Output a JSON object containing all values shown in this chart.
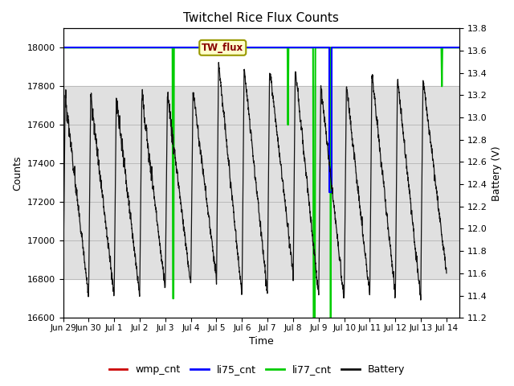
{
  "title": "Twitchel Rice Flux Counts",
  "xlabel": "Time",
  "ylabel_left": "Counts",
  "ylabel_right": "Battery (V)",
  "xlim_days": [
    0,
    15.5
  ],
  "ylim_left": [
    16600,
    18100
  ],
  "ylim_right": [
    11.2,
    13.8
  ],
  "x_tick_labels": [
    "Jun 29",
    "Jun 30",
    "Jul 1",
    "Jul 2",
    "Jul 3",
    "Jul 4",
    "Jul 5",
    "Jul 6",
    "Jul 7",
    "Jul 8",
    "Jul 9",
    "Jul 10",
    "Jul 11",
    "Jul 12",
    "Jul 13",
    "Jul 14"
  ],
  "x_tick_positions": [
    0,
    1,
    2,
    3,
    4,
    5,
    6,
    7,
    8,
    9,
    10,
    11,
    12,
    13,
    14,
    15
  ],
  "annotation_label": "TW_flux",
  "background_shade_ymin": 16800,
  "background_shade_ymax": 17800,
  "grid_color": "#aaaaaa",
  "shade_color": "#e0e0e0",
  "li77_color": "#00cc00",
  "li75_color": "#0000ff",
  "wmp_color": "#cc0000",
  "battery_color": "#111111",
  "legend_labels": [
    "wmp_cnt",
    "li75_cnt",
    "li77_cnt",
    "Battery"
  ],
  "legend_colors": [
    "#cc0000",
    "#0000ff",
    "#00cc00",
    "#111111"
  ],
  "figsize": [
    6.4,
    4.8
  ],
  "dpi": 100
}
